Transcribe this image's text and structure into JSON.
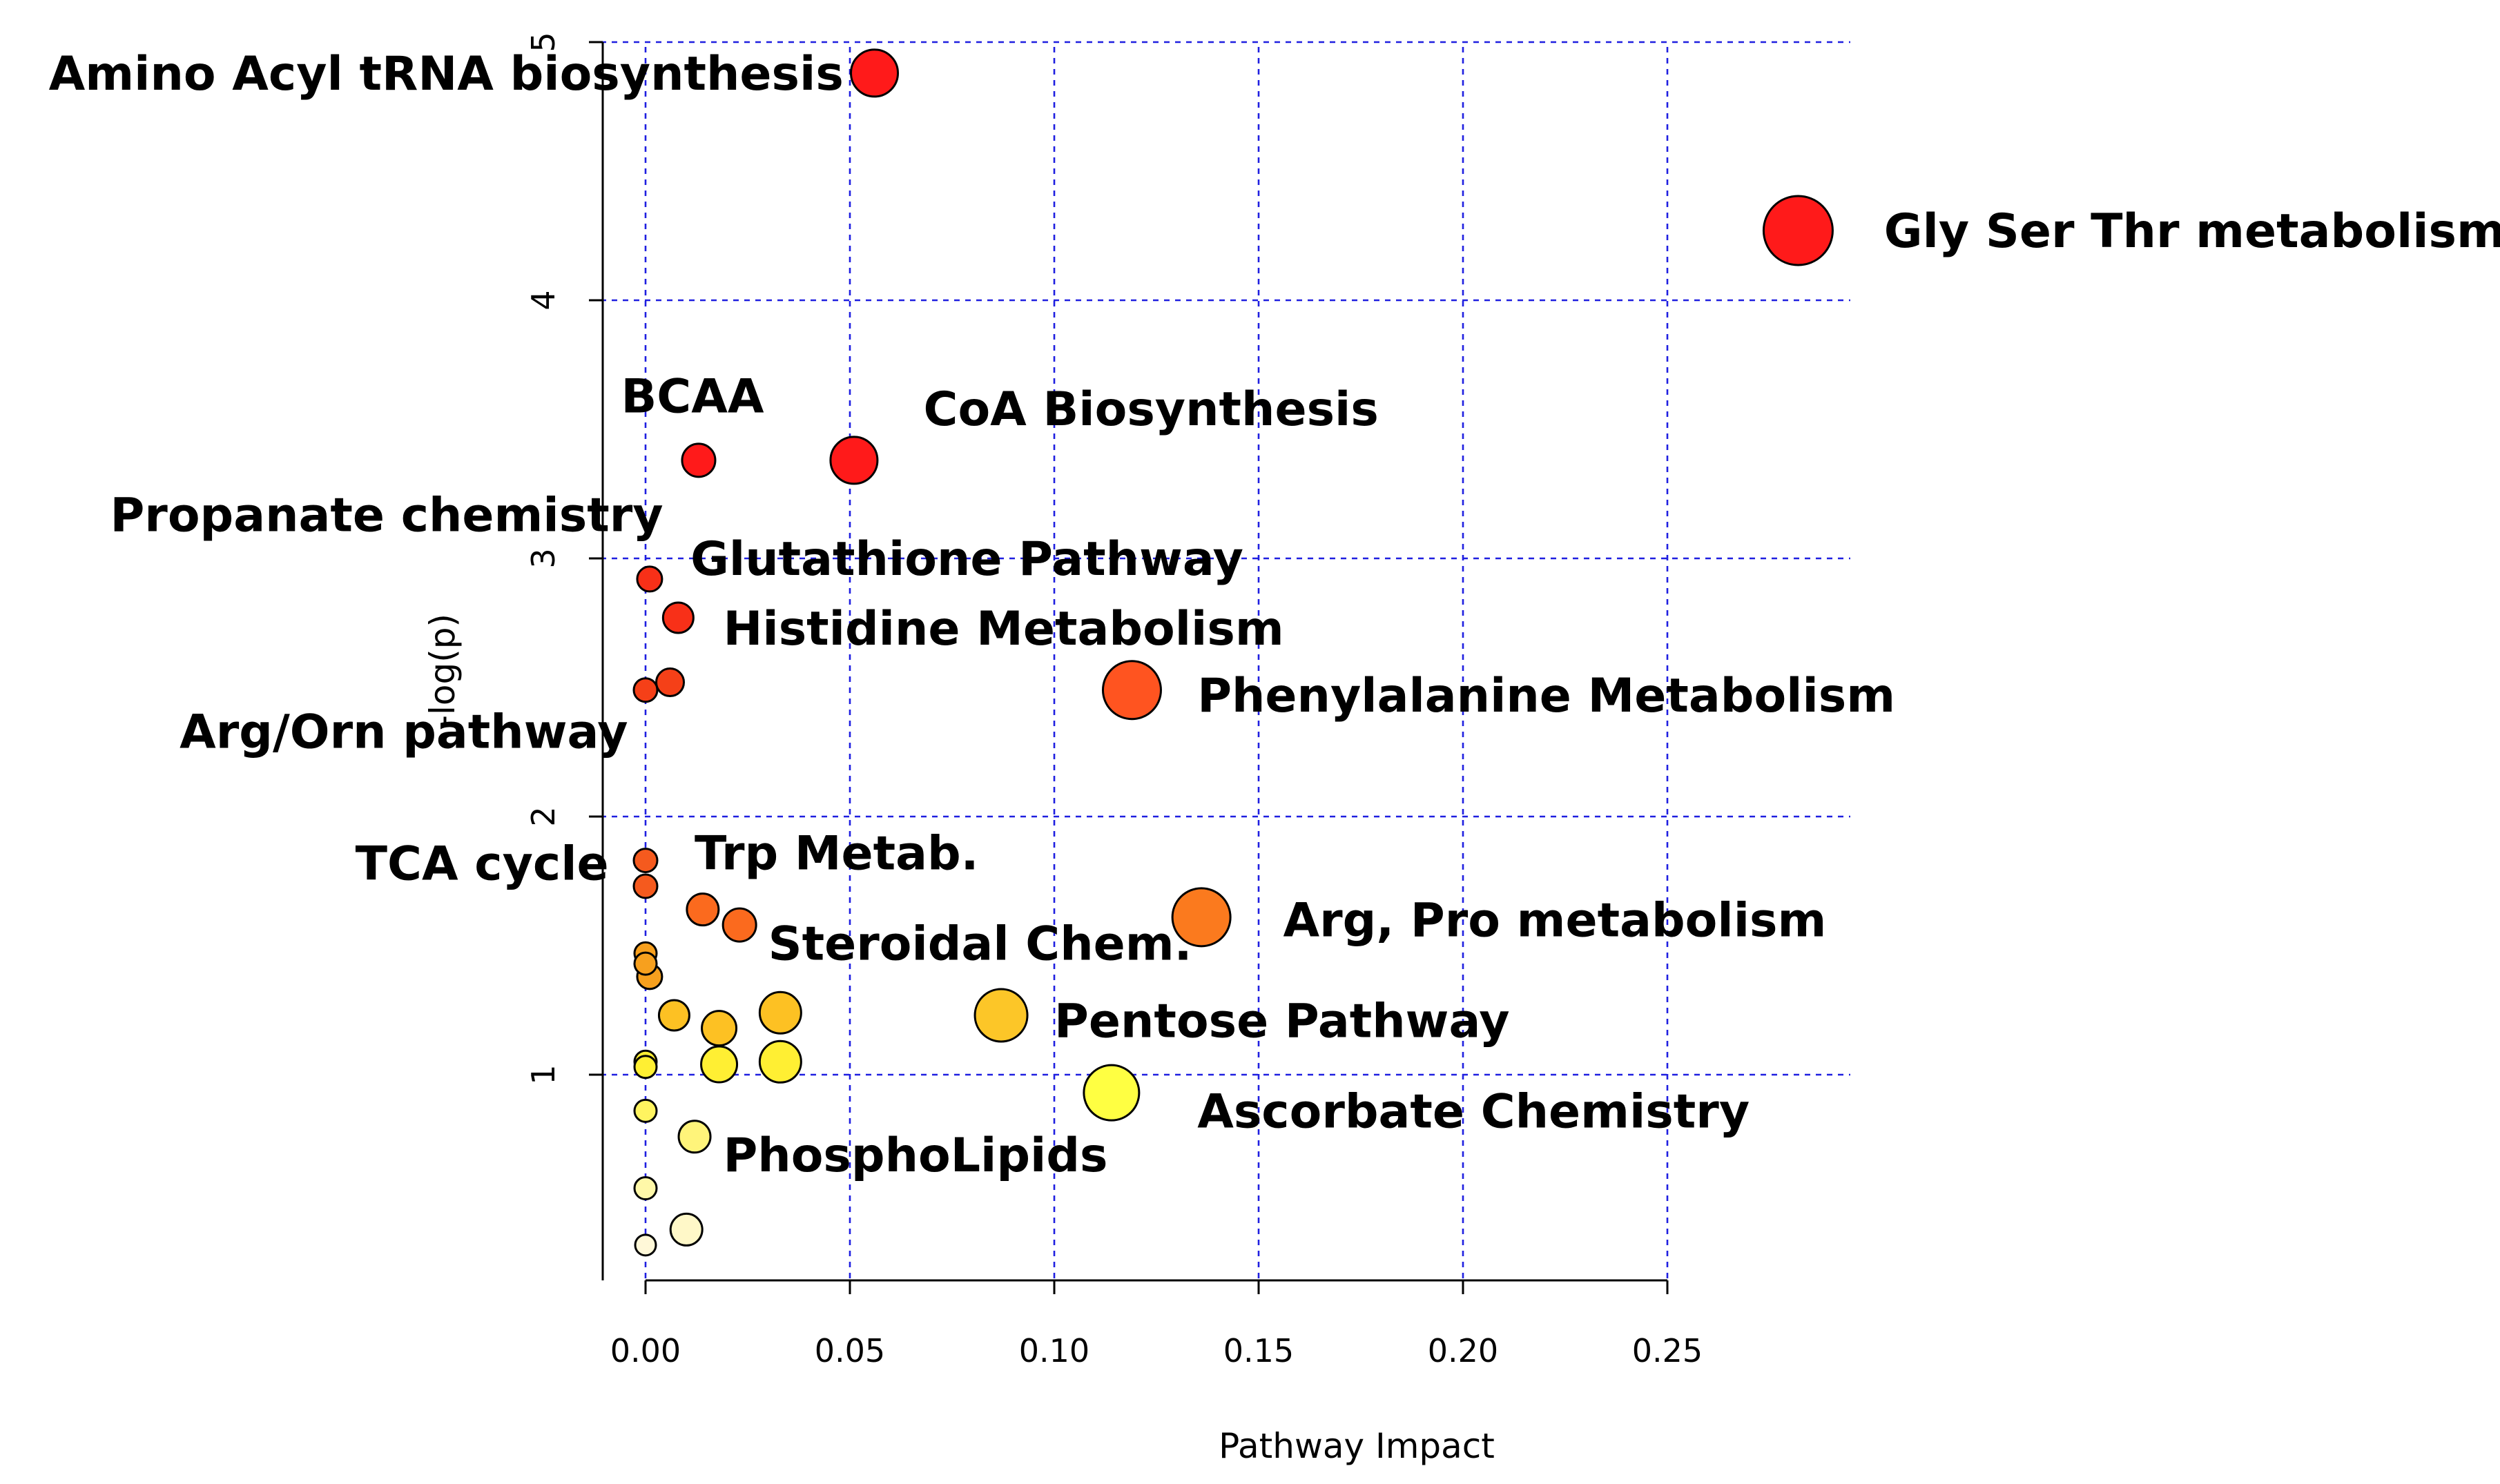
{
  "chart_data": {
    "type": "scatter",
    "title": "",
    "xlabel": "Pathway Impact",
    "ylabel": "-log(p)",
    "xlim": [
      -0.01,
      0.29
    ],
    "ylim": [
      0.1,
      5.05
    ],
    "x_ticks": [
      0,
      0.05,
      0.1,
      0.15,
      0.2,
      0.25
    ],
    "x_tick_labels": [
      "0.00",
      "0.05",
      "0.10",
      "0.15",
      "0.20",
      "0.25"
    ],
    "y_ticks": [
      1,
      2,
      3,
      4,
      5
    ],
    "y_tick_labels": [
      "1",
      "2",
      "3",
      "4",
      "5"
    ],
    "grid": true,
    "points": [
      {
        "x": 0.282,
        "y": 4.27,
        "r": 0.5,
        "color": "#ff1a1a"
      },
      {
        "x": 0.056,
        "y": 4.88,
        "r": 0.34,
        "color": "#ff1a1a"
      },
      {
        "x": 0.051,
        "y": 3.38,
        "r": 0.34,
        "color": "#ff1a1a"
      },
      {
        "x": 0.013,
        "y": 3.38,
        "r": 0.24,
        "color": "#ff1a1a"
      },
      {
        "x": 0.001,
        "y": 2.92,
        "r": 0.18,
        "color": "#f83018"
      },
      {
        "x": 0.008,
        "y": 2.77,
        "r": 0.22,
        "color": "#f83018"
      },
      {
        "x": 0.006,
        "y": 2.52,
        "r": 0.2,
        "color": "#f54018"
      },
      {
        "x": 0.0,
        "y": 2.49,
        "r": 0.17,
        "color": "#f54018"
      },
      {
        "x": 0.119,
        "y": 2.49,
        "r": 0.42,
        "color": "#ff5420"
      },
      {
        "x": 0.0,
        "y": 1.83,
        "r": 0.17,
        "color": "#f55a1e"
      },
      {
        "x": 0.0,
        "y": 1.73,
        "r": 0.17,
        "color": "#f55a1e"
      },
      {
        "x": 0.014,
        "y": 1.64,
        "r": 0.23,
        "color": "#fb6a1e"
      },
      {
        "x": 0.023,
        "y": 1.58,
        "r": 0.24,
        "color": "#fb6a1e"
      },
      {
        "x": 0.136,
        "y": 1.61,
        "r": 0.42,
        "color": "#fb7a1e"
      },
      {
        "x": 0.0,
        "y": 1.47,
        "r": 0.16,
        "color": "#f7a01e"
      },
      {
        "x": 0.0,
        "y": 1.43,
        "r": 0.16,
        "color": "#f7a01e"
      },
      {
        "x": 0.001,
        "y": 1.38,
        "r": 0.18,
        "color": "#f7a01e"
      },
      {
        "x": 0.007,
        "y": 1.23,
        "r": 0.22,
        "color": "#fdc123"
      },
      {
        "x": 0.018,
        "y": 1.18,
        "r": 0.25,
        "color": "#fdc123"
      },
      {
        "x": 0.033,
        "y": 1.24,
        "r": 0.3,
        "color": "#fdc123"
      },
      {
        "x": 0.087,
        "y": 1.23,
        "r": 0.38,
        "color": "#fcc628"
      },
      {
        "x": 0.0,
        "y": 1.05,
        "r": 0.16,
        "color": "#ffef33"
      },
      {
        "x": 0.0,
        "y": 1.03,
        "r": 0.16,
        "color": "#ffef33"
      },
      {
        "x": 0.018,
        "y": 1.04,
        "r": 0.26,
        "color": "#ffef33"
      },
      {
        "x": 0.033,
        "y": 1.05,
        "r": 0.3,
        "color": "#ffef33"
      },
      {
        "x": 0.114,
        "y": 0.93,
        "r": 0.4,
        "color": "#ffff42"
      },
      {
        "x": 0.0,
        "y": 0.86,
        "r": 0.16,
        "color": "#fff460"
      },
      {
        "x": 0.012,
        "y": 0.76,
        "r": 0.23,
        "color": "#fff47a"
      },
      {
        "x": 0.0,
        "y": 0.56,
        "r": 0.16,
        "color": "#fff8a8"
      },
      {
        "x": 0.01,
        "y": 0.4,
        "r": 0.23,
        "color": "#fff8c8"
      },
      {
        "x": 0.0,
        "y": 0.34,
        "r": 0.15,
        "color": "#fff8d8"
      }
    ],
    "annotations": [
      {
        "text": "Amino Acyl tRNA biosynthesis",
        "x": -0.146,
        "y": 4.88,
        "anchor": "start"
      },
      {
        "text": "Gly  Ser Thr metabolism",
        "x": 0.303,
        "y": 4.27,
        "anchor": "start"
      },
      {
        "text": "BCAA",
        "x": -0.006,
        "y": 3.63,
        "anchor": "start"
      },
      {
        "text": "CoA Biosynthesis",
        "x": 0.068,
        "y": 3.58,
        "anchor": "start"
      },
      {
        "text": "Propanate chemistry",
        "x": -0.131,
        "y": 3.17,
        "anchor": "start"
      },
      {
        "text": "Glutathione Pathway",
        "x": 0.011,
        "y": 3.0,
        "anchor": "start"
      },
      {
        "text": "Histidine Metabolism",
        "x": 0.019,
        "y": 2.73,
        "anchor": "start"
      },
      {
        "text": "Phenylalanine Metabolism",
        "x": 0.135,
        "y": 2.47,
        "anchor": "start"
      },
      {
        "text": "Arg/Orn pathway",
        "x": -0.114,
        "y": 2.33,
        "anchor": "start"
      },
      {
        "text": "TCA cycle",
        "x": -0.071,
        "y": 1.82,
        "anchor": "start"
      },
      {
        "text": "Trp Metab.",
        "x": 0.012,
        "y": 1.86,
        "anchor": "start"
      },
      {
        "text": "Steroidal Chem.",
        "x": 0.03,
        "y": 1.51,
        "anchor": "start"
      },
      {
        "text": "Arg, Pro metabolism",
        "x": 0.156,
        "y": 1.6,
        "anchor": "start"
      },
      {
        "text": "Pentose Pathway",
        "x": 0.1,
        "y": 1.21,
        "anchor": "start"
      },
      {
        "text": "Ascorbate Chemistry",
        "x": 0.135,
        "y": 0.86,
        "anchor": "start"
      },
      {
        "text": "PhosphoLipids",
        "x": 0.019,
        "y": 0.69,
        "anchor": "start"
      }
    ]
  }
}
